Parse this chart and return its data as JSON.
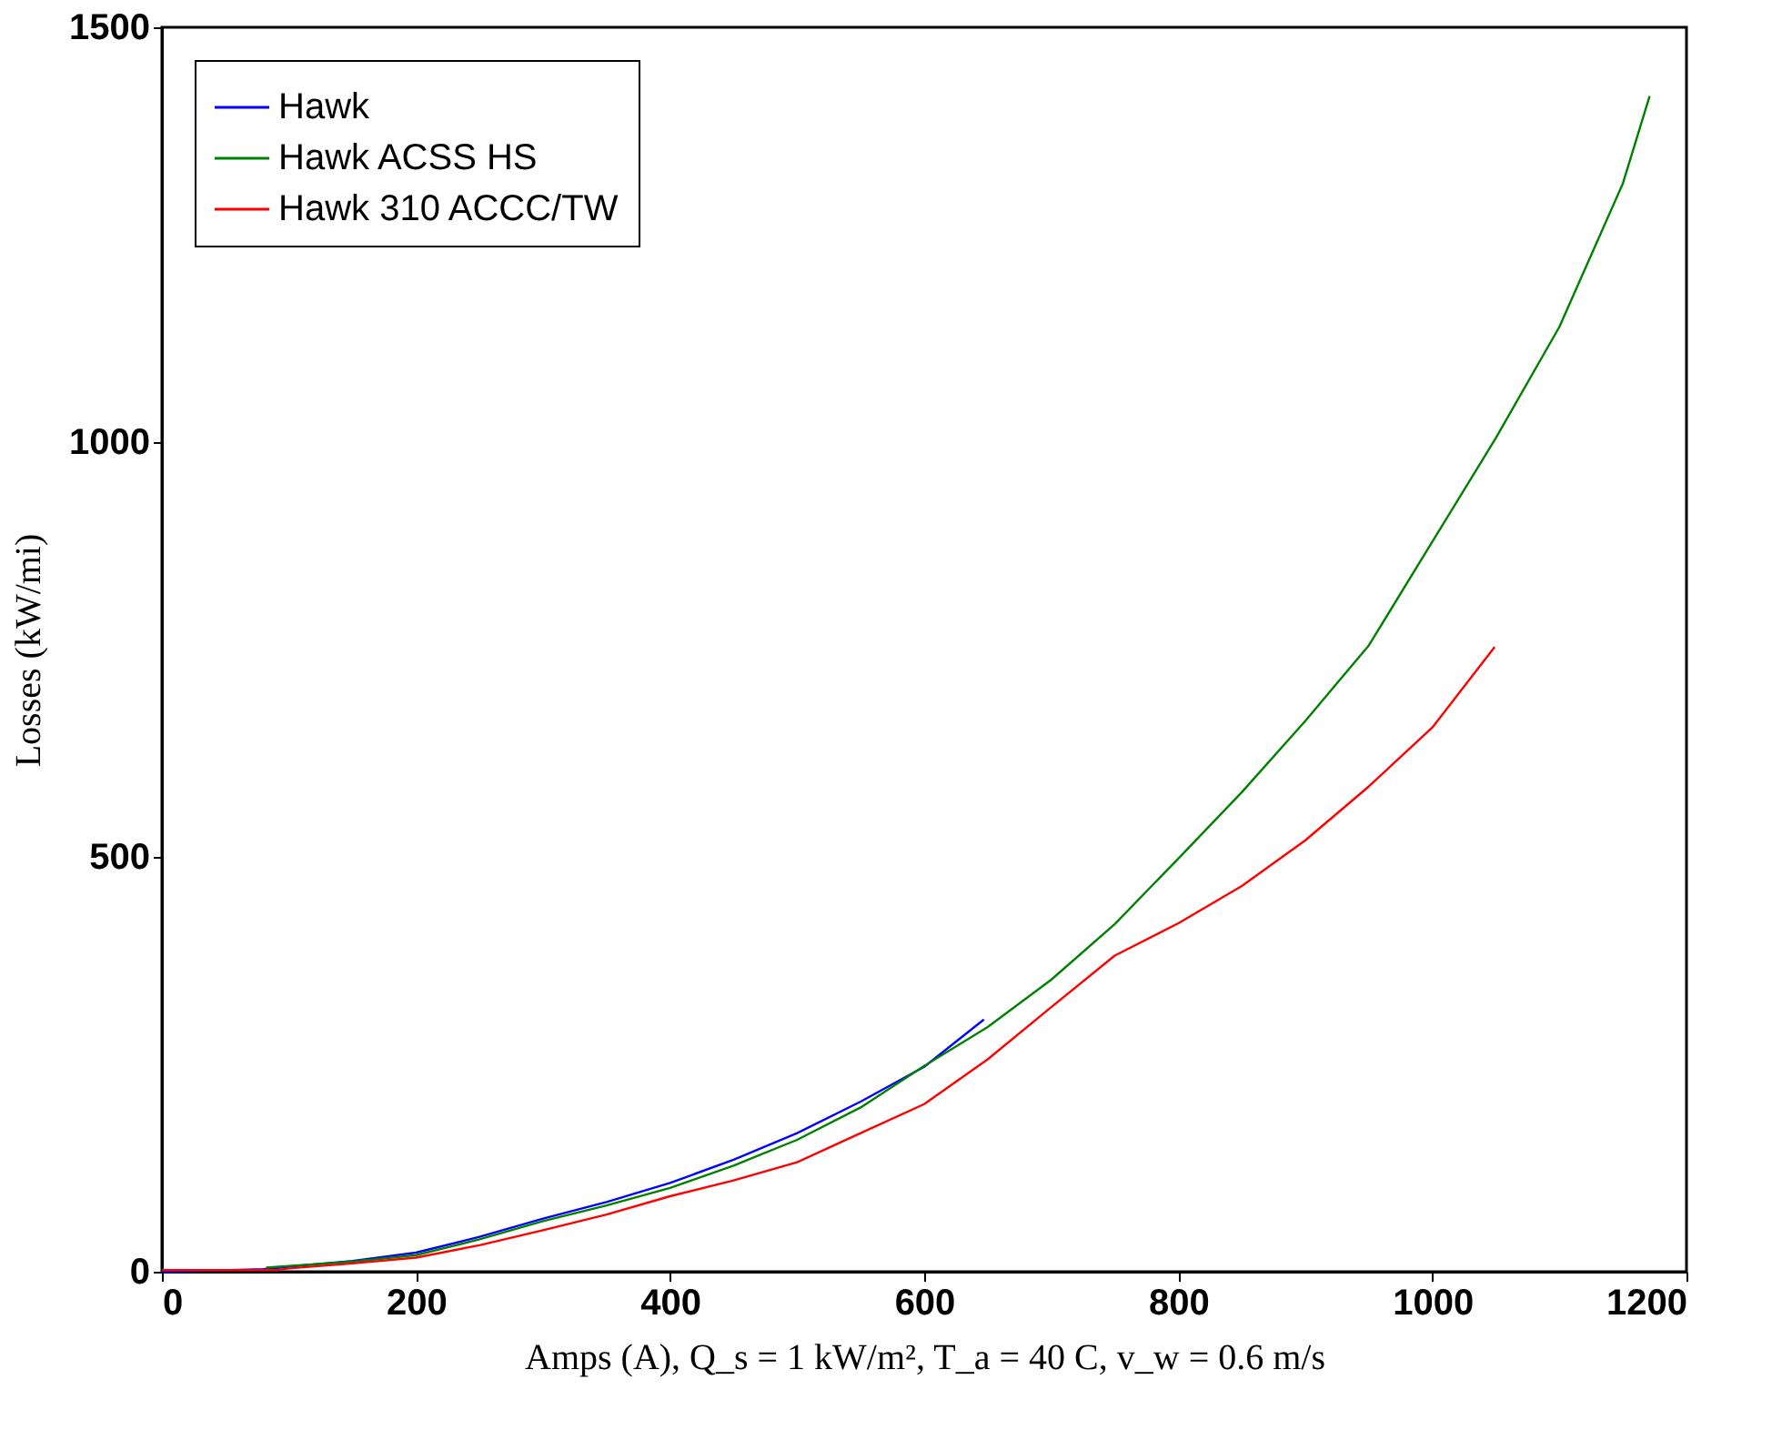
{
  "chart_data": {
    "type": "line",
    "xlabel": "Amps (A), Q_s = 1 kW/m², T_a = 40 C, v_w = 0.6 m/s",
    "ylabel": "Losses (kW/mi)",
    "xlim": [
      0,
      1200
    ],
    "xticks": [
      0,
      200,
      400,
      600,
      800,
      1000,
      1200
    ],
    "ylim": [
      0,
      1500
    ],
    "yticks": [
      0,
      500,
      1000,
      1500
    ],
    "grid": false,
    "legend": "top left",
    "line_style": "solid",
    "marker": "none",
    "series": [
      {
        "name": "Hawk",
        "color": "#0000ff",
        "x": [
          0,
          80,
          100,
          150,
          200,
          250,
          300,
          350,
          400,
          450,
          500,
          550,
          600,
          647
        ],
        "values": [
          0,
          3,
          6,
          13,
          23,
          42,
          64,
          84,
          107,
          135,
          167,
          205,
          247,
          304
        ]
      },
      {
        "name": "Hawk ACSS HS",
        "color": "#008000",
        "x": [
          82,
          100,
          150,
          200,
          250,
          300,
          350,
          400,
          450,
          500,
          550,
          600,
          650,
          700,
          750,
          800,
          850,
          900,
          950,
          1000,
          1050,
          1100,
          1150,
          1171
        ],
        "values": [
          5,
          7,
          12,
          20,
          39,
          61,
          80,
          101,
          128,
          159,
          198,
          248,
          295,
          352,
          419,
          498,
          578,
          664,
          755,
          880,
          1005,
          1139,
          1312,
          1417
        ]
      },
      {
        "name": "Hawk 310 ACCC/TW",
        "color": "#ff0000",
        "x": [
          0,
          91,
          100,
          150,
          200,
          250,
          300,
          350,
          400,
          450,
          500,
          550,
          600,
          650,
          700,
          750,
          800,
          850,
          900,
          950,
          1000,
          1049
        ],
        "values": [
          2,
          2,
          4,
          10,
          17,
          32,
          50,
          69,
          91,
          110,
          132,
          167,
          202,
          256,
          319,
          381,
          420,
          465,
          520,
          585,
          656,
          753
        ]
      }
    ]
  }
}
